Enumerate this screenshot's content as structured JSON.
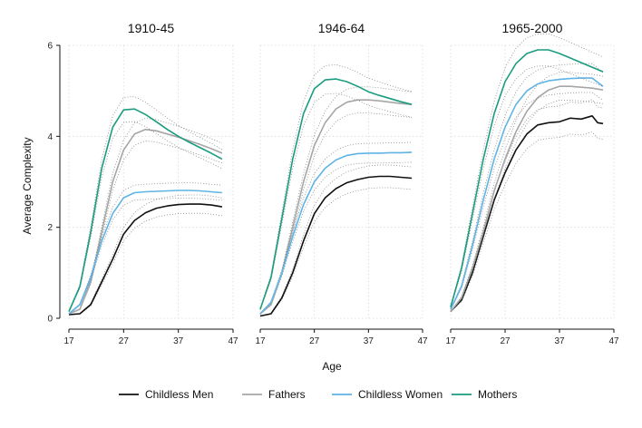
{
  "chart_data": {
    "type": "line",
    "ylabel": "Average Complexity",
    "xlabel": "Age",
    "xlim": [
      17,
      47
    ],
    "ylim": [
      0,
      6
    ],
    "xticks": [
      17,
      27,
      37,
      47
    ],
    "yticks": [
      0,
      2,
      4,
      6
    ],
    "grid": true,
    "legend_position": "bottom",
    "confidence_bands": true,
    "series_colors": {
      "Childless Men": "#111111",
      "Fathers": "#a6a6a6",
      "Childless Women": "#5fb4e5",
      "Mothers": "#1a9c7e"
    },
    "legend": [
      "Childless Men",
      "Fathers",
      "Childless Women",
      "Mothers"
    ],
    "panels": [
      {
        "title": "1910-45",
        "series": [
          {
            "name": "Childless Men",
            "x": [
              17,
              19,
              21,
              23,
              25,
              27,
              29,
              31,
              33,
              35,
              37,
              39,
              41,
              43,
              45
            ],
            "values": [
              0.08,
              0.1,
              0.3,
              0.8,
              1.3,
              1.85,
              2.15,
              2.32,
              2.42,
              2.47,
              2.5,
              2.51,
              2.51,
              2.49,
              2.45
            ]
          },
          {
            "name": "Fathers",
            "x": [
              17,
              19,
              21,
              23,
              25,
              27,
              29,
              31,
              33,
              35,
              37,
              39,
              41,
              43,
              45
            ],
            "values": [
              0.1,
              0.2,
              0.8,
              1.9,
              3.0,
              3.7,
              4.05,
              4.15,
              4.12,
              4.05,
              3.98,
              3.9,
              3.82,
              3.73,
              3.63
            ]
          },
          {
            "name": "Childless Women",
            "x": [
              17,
              19,
              21,
              23,
              25,
              27,
              29,
              31,
              33,
              35,
              37,
              39,
              41,
              43,
              45
            ],
            "values": [
              0.1,
              0.3,
              0.9,
              1.7,
              2.3,
              2.65,
              2.76,
              2.78,
              2.79,
              2.8,
              2.81,
              2.81,
              2.8,
              2.78,
              2.76
            ]
          },
          {
            "name": "Mothers",
            "x": [
              17,
              19,
              21,
              23,
              25,
              27,
              29,
              31,
              33,
              35,
              37,
              39,
              41,
              43,
              45
            ],
            "values": [
              0.15,
              0.7,
              1.9,
              3.3,
              4.2,
              4.58,
              4.6,
              4.48,
              4.32,
              4.15,
              4.0,
              3.87,
              3.75,
              3.63,
              3.5
            ]
          }
        ]
      },
      {
        "title": "1946-64",
        "series": [
          {
            "name": "Childless Men",
            "x": [
              17,
              19,
              21,
              23,
              25,
              27,
              29,
              31,
              33,
              35,
              37,
              39,
              41,
              43,
              45
            ],
            "values": [
              0.05,
              0.1,
              0.45,
              1.0,
              1.7,
              2.3,
              2.65,
              2.85,
              2.98,
              3.05,
              3.1,
              3.12,
              3.12,
              3.1,
              3.08
            ]
          },
          {
            "name": "Fathers",
            "x": [
              17,
              19,
              21,
              23,
              25,
              27,
              29,
              31,
              33,
              35,
              37,
              39,
              41,
              43,
              45
            ],
            "values": [
              0.1,
              0.3,
              1.0,
              2.0,
              3.0,
              3.8,
              4.3,
              4.6,
              4.75,
              4.8,
              4.8,
              4.78,
              4.75,
              4.72,
              4.7
            ]
          },
          {
            "name": "Childless Women",
            "x": [
              17,
              19,
              21,
              23,
              25,
              27,
              29,
              31,
              33,
              35,
              37,
              39,
              41,
              43,
              45
            ],
            "values": [
              0.1,
              0.35,
              1.0,
              1.8,
              2.5,
              3.0,
              3.3,
              3.48,
              3.58,
              3.62,
              3.63,
              3.63,
              3.64,
              3.64,
              3.65
            ]
          },
          {
            "name": "Mothers",
            "x": [
              17,
              19,
              21,
              23,
              25,
              27,
              29,
              31,
              33,
              35,
              37,
              39,
              41,
              43,
              45
            ],
            "values": [
              0.2,
              0.9,
              2.2,
              3.5,
              4.5,
              5.05,
              5.24,
              5.26,
              5.2,
              5.1,
              4.98,
              4.9,
              4.83,
              4.76,
              4.7
            ]
          }
        ]
      },
      {
        "title": "1965-2000",
        "series": [
          {
            "name": "Childless Men",
            "x": [
              17,
              19,
              21,
              23,
              25,
              27,
              29,
              31,
              33,
              35,
              37,
              39,
              41,
              43,
              44,
              45
            ],
            "values": [
              0.15,
              0.4,
              1.0,
              1.8,
              2.6,
              3.2,
              3.7,
              4.05,
              4.25,
              4.3,
              4.32,
              4.4,
              4.38,
              4.45,
              4.3,
              4.28
            ]
          },
          {
            "name": "Fathers",
            "x": [
              17,
              19,
              21,
              23,
              25,
              27,
              29,
              31,
              33,
              35,
              37,
              39,
              41,
              43,
              45
            ],
            "values": [
              0.15,
              0.45,
              1.1,
              1.9,
              2.8,
              3.5,
              4.1,
              4.55,
              4.85,
              5.02,
              5.1,
              5.1,
              5.08,
              5.06,
              5.02
            ]
          },
          {
            "name": "Childless Women",
            "x": [
              17,
              19,
              21,
              23,
              25,
              27,
              29,
              31,
              33,
              35,
              37,
              39,
              41,
              43,
              45
            ],
            "values": [
              0.2,
              0.7,
              1.6,
              2.6,
              3.5,
              4.2,
              4.7,
              5.0,
              5.15,
              5.22,
              5.25,
              5.27,
              5.28,
              5.28,
              5.1
            ]
          },
          {
            "name": "Mothers",
            "x": [
              17,
              19,
              21,
              23,
              25,
              27,
              29,
              31,
              33,
              35,
              37,
              39,
              41,
              43,
              45
            ],
            "values": [
              0.25,
              1.1,
              2.3,
              3.5,
              4.5,
              5.2,
              5.6,
              5.82,
              5.9,
              5.9,
              5.82,
              5.72,
              5.62,
              5.52,
              5.42
            ]
          }
        ]
      }
    ]
  }
}
